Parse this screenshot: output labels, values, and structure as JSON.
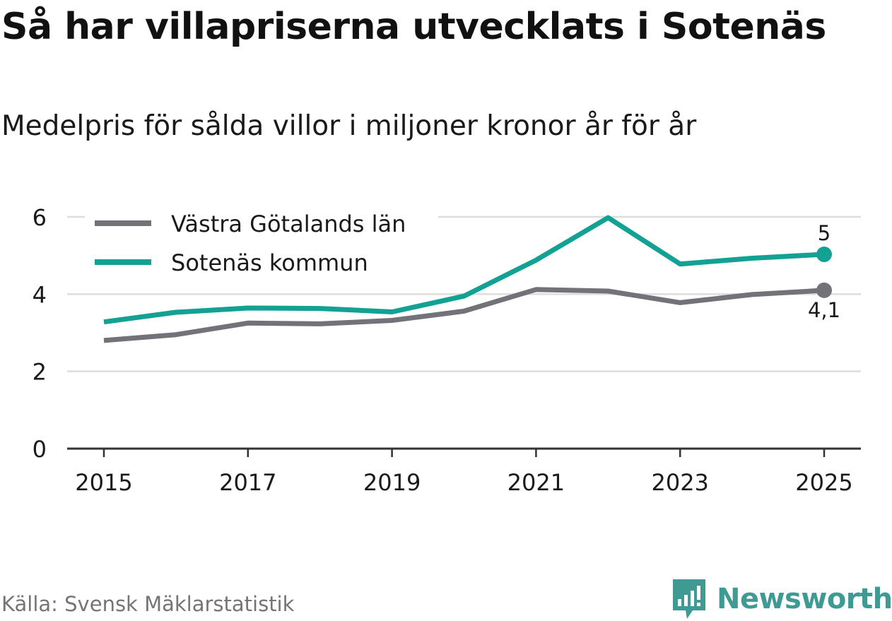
{
  "header": {
    "title": "Så har villapriserna utvecklats i Sotenäs",
    "subtitle": "Medelpris för sålda villor i miljoner kronor år för år"
  },
  "footer": {
    "source": "Källa: Svensk Mäklarstatistik",
    "brand": "Newsworthy",
    "brand_icon": "newsworthy-logo-icon"
  },
  "colors": {
    "grid": "#dddddd",
    "axis": "#333333",
    "text": "#1a1a1a",
    "source": "#757575",
    "brand": "#3f9a93"
  },
  "chart_data": {
    "type": "line",
    "title": "Så har villapriserna utvecklats i Sotenäs",
    "subtitle": "Medelpris för sålda villor i miljoner kronor år för år",
    "xlabel": "",
    "ylabel": "",
    "x": [
      2015,
      2016,
      2017,
      2018,
      2019,
      2020,
      2021,
      2022,
      2023,
      2024,
      2025
    ],
    "x_tick_labels": [
      "2015",
      "2017",
      "2019",
      "2021",
      "2023",
      "2025"
    ],
    "y_ticks": [
      0,
      2,
      4,
      6
    ],
    "y_tick_labels": [
      "0",
      "2",
      "4",
      "6"
    ],
    "ylim": [
      0,
      6
    ],
    "xlim": [
      2014.5,
      2025.5
    ],
    "grid": true,
    "legend_position": "top-left",
    "series": [
      {
        "name": "Västra Götalands län",
        "color": "#737278",
        "values": [
          2.8,
          2.95,
          3.25,
          3.23,
          3.32,
          3.56,
          4.12,
          4.08,
          3.78,
          3.99,
          4.1
        ],
        "end_label": "4,1"
      },
      {
        "name": "Sotenäs kommun",
        "color": "#12a193",
        "values": [
          3.28,
          3.53,
          3.64,
          3.63,
          3.54,
          3.95,
          4.88,
          5.98,
          4.78,
          4.93,
          5.03
        ],
        "end_label": "5"
      }
    ]
  }
}
